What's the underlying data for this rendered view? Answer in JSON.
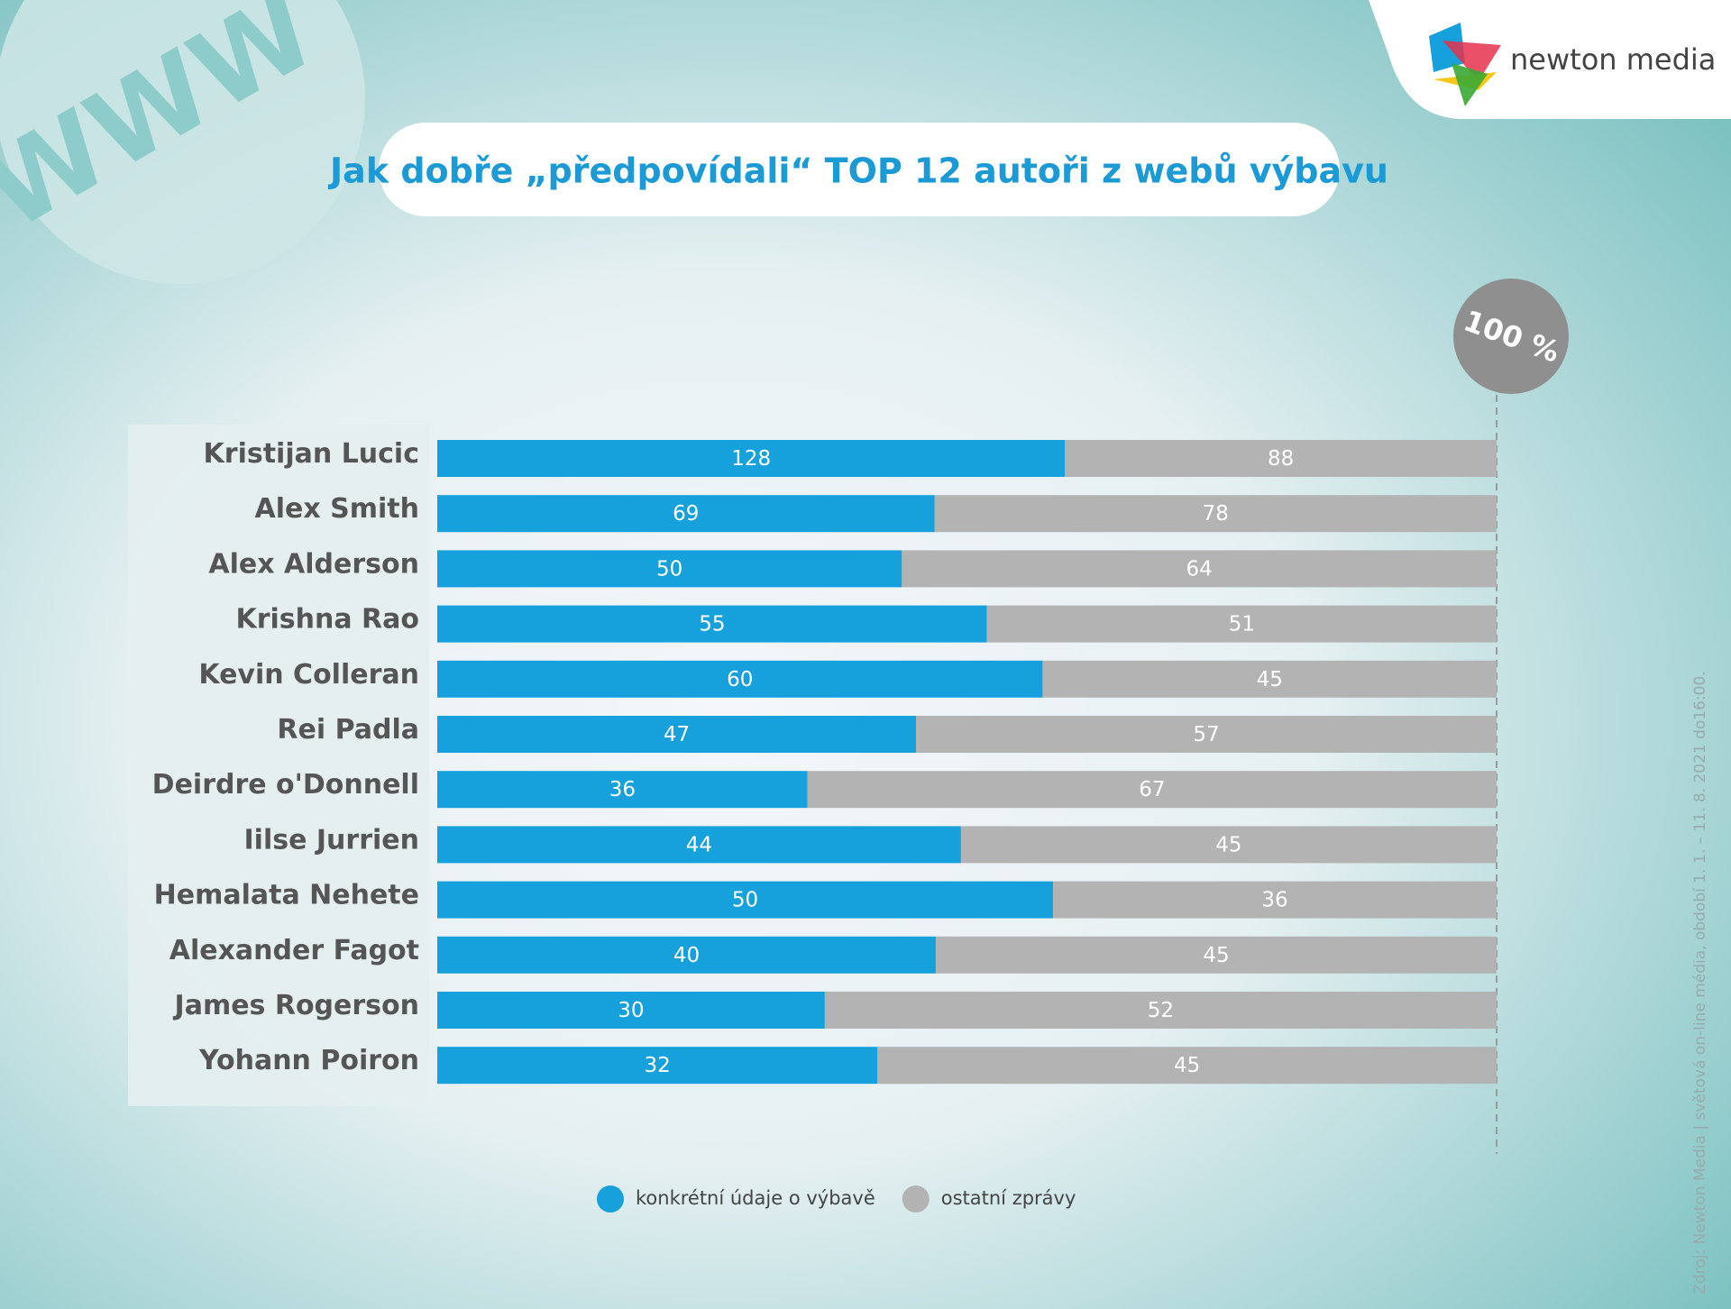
{
  "decoration": "WWW",
  "logo": "newton media",
  "source": "Zdroj: Newton Media | světová on-line média, období 1. 1. – 11. 8. 2021 do16:00.",
  "chart_data": {
    "type": "bar",
    "orientation": "horizontal",
    "stacked": "percent",
    "title": "Jak dobře „předpovídali“ TOP 12 autoři z webů výbavu",
    "categories": [
      "Kristijan Lucic",
      "Alex Smith",
      "Alex Alderson",
      "Krishna Rao",
      "Kevin Colleran",
      "Rei Padla",
      "Deirdre o'Donnell",
      "Iilse Jurrien",
      "Hemalata Nehete",
      "Alexander Fagot",
      "James Rogerson",
      "Yohann Poiron"
    ],
    "series": [
      {
        "name": "konkrétní údaje o výbavě",
        "color": "#17a1dc",
        "values": [
          128,
          69,
          50,
          55,
          60,
          47,
          36,
          44,
          50,
          40,
          30,
          32
        ]
      },
      {
        "name": "ostatní zprávy",
        "color": "#b3b3b3",
        "values": [
          88,
          78,
          64,
          51,
          45,
          57,
          67,
          45,
          36,
          45,
          52,
          45
        ]
      }
    ],
    "xlim": [
      0,
      100
    ],
    "xticks": [
      {
        "value": 100,
        "label": "100 %"
      }
    ],
    "legend": "bottom"
  }
}
